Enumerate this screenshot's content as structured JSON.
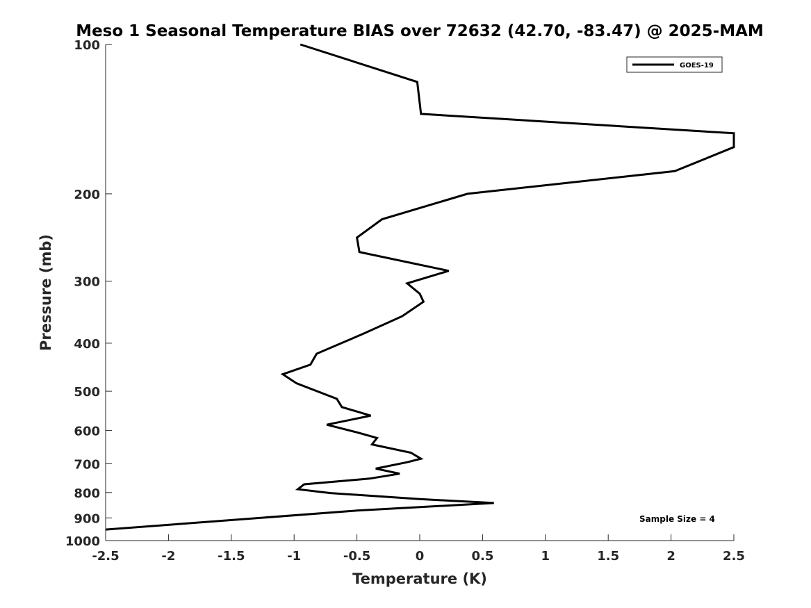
{
  "chart_data": {
    "type": "line",
    "title": "Meso 1 Seasonal Temperature BIAS over 72632 (42.70, -83.47) @ 2025-MAM",
    "xlabel": "Temperature (K)",
    "ylabel": "Pressure (mb)",
    "xlim": [
      -2.5,
      2.5
    ],
    "ylim": [
      1000,
      100
    ],
    "y_scale": "log",
    "y_reversed": true,
    "grid": false,
    "legend_position": "top-right",
    "x_ticks": [
      "-2.5",
      "-2",
      "-1.5",
      "-1",
      "-0.5",
      "0",
      "0.5",
      "1",
      "1.5",
      "2",
      "2.5"
    ],
    "x_tick_values": [
      -2.5,
      -2,
      -1.5,
      -1,
      -0.5,
      0,
      0.5,
      1,
      1.5,
      2,
      2.5
    ],
    "y_ticks": [
      "100",
      "200",
      "300",
      "400",
      "500",
      "600",
      "700",
      "800",
      "900",
      "1000"
    ],
    "y_tick_values": [
      100,
      200,
      300,
      400,
      500,
      600,
      700,
      800,
      900,
      1000
    ],
    "series": [
      {
        "name": "GOES-19",
        "color": "#000000",
        "x": [
          -0.95,
          -0.02,
          0.01,
          2.5,
          2.5,
          2.03,
          0.38,
          -0.3,
          -0.5,
          -0.48,
          0.23,
          -0.1,
          0.0,
          0.03,
          -0.14,
          -0.45,
          -0.82,
          -0.87,
          -1.09,
          -0.98,
          -0.66,
          -0.62,
          -0.39,
          -0.74,
          -0.5,
          -0.34,
          -0.38,
          -0.07,
          0.01,
          -0.1,
          -0.35,
          -0.16,
          -0.4,
          -0.92,
          -0.97,
          -0.71,
          0.0,
          0.59,
          -0.5,
          -2.5
        ],
        "y": [
          100,
          119,
          138,
          151,
          161,
          180,
          200,
          225,
          245,
          262,
          286,
          303,
          318,
          330,
          353,
          383,
          420,
          442,
          462,
          482,
          518,
          538,
          560,
          584,
          605,
          621,
          640,
          665,
          684,
          695,
          716,
          733,
          750,
          770,
          788,
          802,
          825,
          840,
          870,
          950
        ]
      }
    ],
    "annotations": [
      "Sample Size = 4"
    ]
  }
}
